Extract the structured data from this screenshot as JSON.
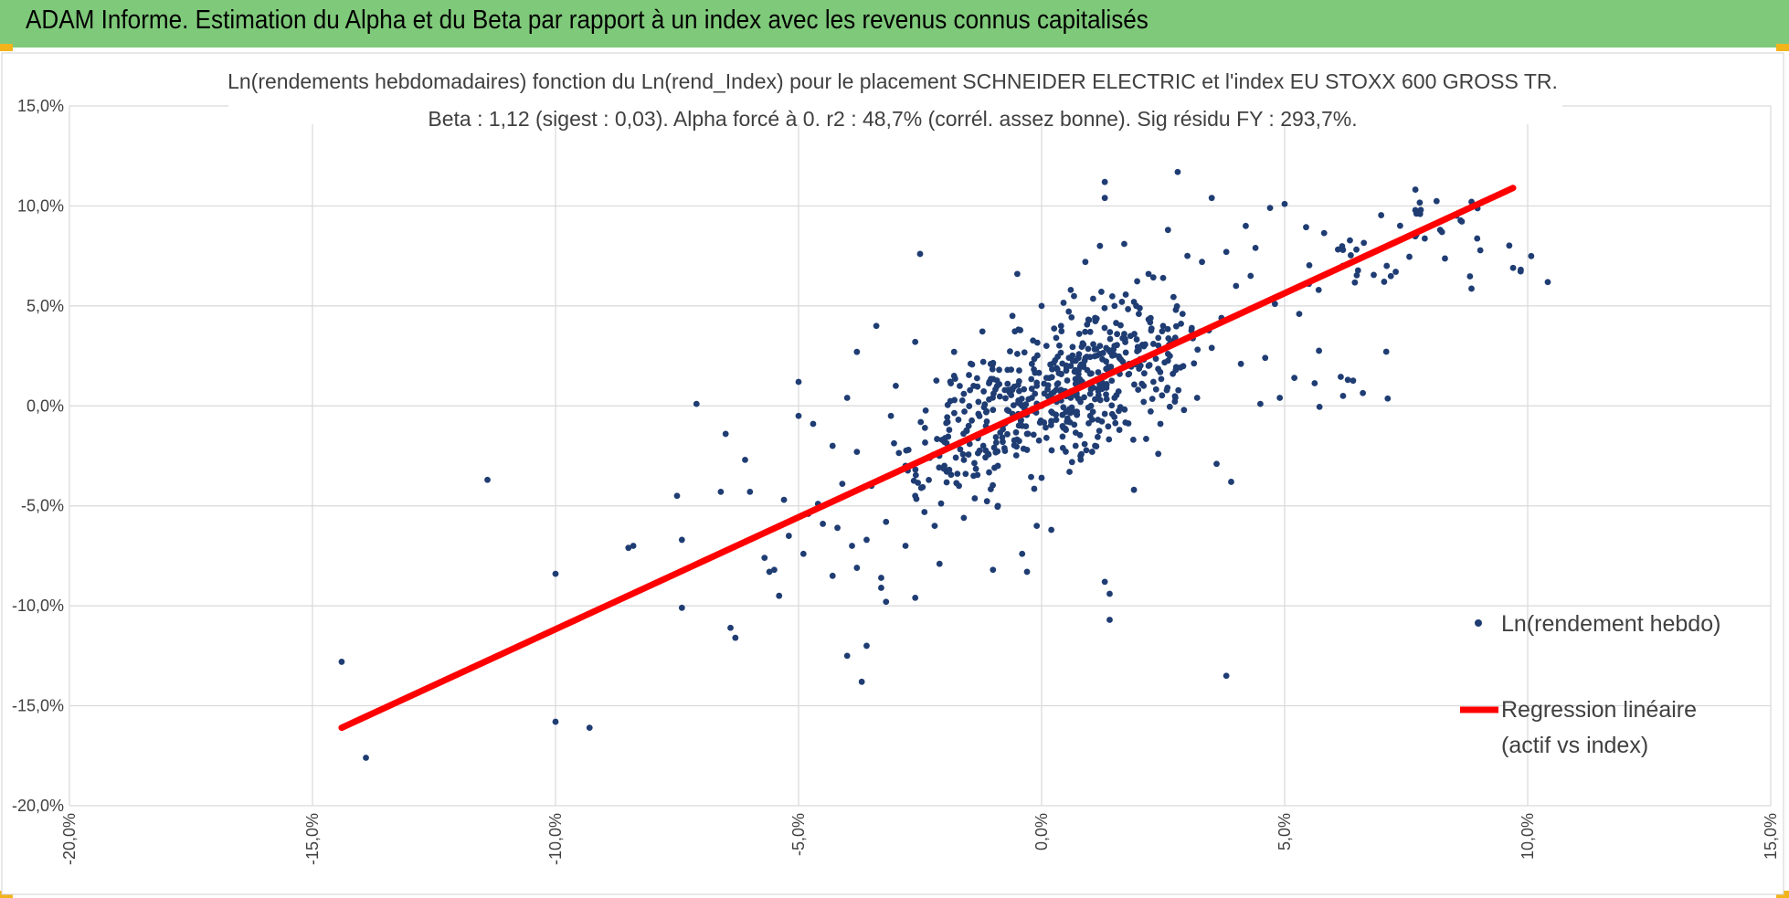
{
  "header": {
    "title": "ADAM Informe. Estimation du Alpha et du Beta par rapport à un index avec les revenus connus capitalisés"
  },
  "colors": {
    "header_bg": "#7fc97a",
    "corner_accent": "#f3b41b",
    "points": "#1f3d73",
    "regression": "#ff0000",
    "grid": "#d9d9d9"
  },
  "chart_data": {
    "type": "scatter",
    "title": "Ln(rendements hebdomadaires) fonction du Ln(rend_Index) pour le placement SCHNEIDER ELECTRIC et l'index EU STOXX 600 GROSS TR.",
    "subtitle": "Beta : 1,12 (sigest : 0,03). Alpha forcé à 0. r2 : 48,7% (corrél. assez bonne). Sig résidu FY : 293,7%.",
    "xlim": [
      -0.2,
      0.15
    ],
    "ylim": [
      -0.2,
      0.15
    ],
    "x_ticks": [
      {
        "value": -0.2,
        "label": "-20,0%"
      },
      {
        "value": -0.15,
        "label": "-15,0%"
      },
      {
        "value": -0.1,
        "label": "-10,0%"
      },
      {
        "value": -0.05,
        "label": "-5,0%"
      },
      {
        "value": 0.0,
        "label": "0,0%"
      },
      {
        "value": 0.05,
        "label": "5,0%"
      },
      {
        "value": 0.1,
        "label": "10,0%"
      },
      {
        "value": 0.15,
        "label": "15,0%"
      }
    ],
    "y_ticks": [
      {
        "value": 0.15,
        "label": "15,0%"
      },
      {
        "value": 0.1,
        "label": "10,0%"
      },
      {
        "value": 0.05,
        "label": "5,0%"
      },
      {
        "value": 0.0,
        "label": "0,0%"
      },
      {
        "value": -0.05,
        "label": "-5,0%"
      },
      {
        "value": -0.1,
        "label": "-10,0%"
      },
      {
        "value": -0.15,
        "label": "-15,0%"
      },
      {
        "value": -0.2,
        "label": "-20,0%"
      }
    ],
    "grid": true,
    "legend_position": "right",
    "series": [
      {
        "name": "Ln(rendement hebdo)",
        "kind": "scatter",
        "points": [
          [
            -0.144,
            -0.128
          ],
          [
            -0.139,
            -0.176
          ],
          [
            -0.114,
            -0.037
          ],
          [
            -0.1,
            -0.158
          ],
          [
            -0.1,
            -0.084
          ],
          [
            -0.093,
            -0.161
          ],
          [
            -0.085,
            -0.071
          ],
          [
            -0.084,
            -0.07
          ],
          [
            -0.075,
            -0.045
          ],
          [
            -0.074,
            -0.101
          ],
          [
            -0.074,
            -0.067
          ],
          [
            -0.071,
            0.001
          ],
          [
            -0.066,
            -0.043
          ],
          [
            -0.065,
            -0.014
          ],
          [
            -0.064,
            -0.111
          ],
          [
            -0.063,
            -0.116
          ],
          [
            -0.061,
            -0.027
          ],
          [
            -0.06,
            -0.043
          ],
          [
            -0.057,
            -0.076
          ],
          [
            -0.056,
            -0.083
          ],
          [
            -0.055,
            -0.082
          ],
          [
            -0.054,
            -0.095
          ],
          [
            -0.053,
            -0.047
          ],
          [
            -0.052,
            -0.065
          ],
          [
            -0.05,
            -0.005
          ],
          [
            -0.05,
            0.012
          ],
          [
            -0.049,
            -0.074
          ],
          [
            -0.048,
            -0.054
          ],
          [
            -0.047,
            -0.009
          ],
          [
            -0.046,
            -0.049
          ],
          [
            -0.045,
            -0.059
          ],
          [
            -0.043,
            -0.085
          ],
          [
            -0.043,
            -0.02
          ],
          [
            -0.042,
            -0.061
          ],
          [
            -0.041,
            -0.039
          ],
          [
            -0.04,
            -0.125
          ],
          [
            -0.04,
            0.004
          ],
          [
            -0.039,
            -0.07
          ],
          [
            -0.038,
            -0.081
          ],
          [
            -0.038,
            -0.023
          ],
          [
            -0.038,
            0.027
          ],
          [
            -0.037,
            -0.138
          ],
          [
            -0.036,
            -0.12
          ],
          [
            -0.036,
            -0.067
          ],
          [
            -0.035,
            -0.04
          ],
          [
            -0.034,
            0.04
          ],
          [
            -0.033,
            -0.086
          ],
          [
            -0.033,
            -0.091
          ],
          [
            -0.032,
            -0.098
          ],
          [
            -0.032,
            -0.058
          ],
          [
            -0.031,
            -0.005
          ],
          [
            -0.03,
            0.01
          ],
          [
            -0.028,
            -0.07
          ],
          [
            -0.028,
            -0.03
          ],
          [
            -0.026,
            -0.096
          ],
          [
            -0.026,
            -0.045
          ],
          [
            -0.026,
            0.032
          ],
          [
            -0.025,
            0.076
          ],
          [
            -0.024,
            -0.011
          ],
          [
            -0.022,
            -0.06
          ],
          [
            -0.021,
            -0.079
          ],
          [
            -0.02,
            -0.03
          ],
          [
            -0.019,
            -0.012
          ],
          [
            -0.018,
            0.015
          ],
          [
            -0.018,
            0.027
          ],
          [
            -0.016,
            -0.056
          ],
          [
            -0.014,
            -0.035
          ],
          [
            -0.013,
            -0.004
          ],
          [
            -0.012,
            0.022
          ],
          [
            -0.01,
            -0.082
          ],
          [
            -0.009,
            -0.05
          ],
          [
            -0.008,
            -0.018
          ],
          [
            -0.007,
            0.011
          ],
          [
            -0.006,
            0.008
          ],
          [
            -0.006,
            0.045
          ],
          [
            -0.005,
            0.066
          ],
          [
            -0.004,
            -0.074
          ],
          [
            -0.003,
            -0.083
          ],
          [
            -0.003,
            -0.014
          ],
          [
            -0.002,
            0.021
          ],
          [
            -0.001,
            -0.06
          ],
          [
            0.0,
            -0.036
          ],
          [
            0.0,
            0.05
          ],
          [
            0.001,
            -0.016
          ],
          [
            0.001,
            0.03
          ],
          [
            0.002,
            -0.062
          ],
          [
            0.003,
            -0.007
          ],
          [
            0.004,
            0.04
          ],
          [
            0.005,
            -0.003
          ],
          [
            0.006,
            0.058
          ],
          [
            0.007,
            0.011
          ],
          [
            0.008,
            -0.025
          ],
          [
            0.009,
            0.072
          ],
          [
            0.01,
            0.037
          ],
          [
            0.011,
            -0.02
          ],
          [
            0.012,
            0.03
          ],
          [
            0.012,
            0.08
          ],
          [
            0.013,
            0.104
          ],
          [
            0.013,
            0.112
          ],
          [
            0.014,
            -0.107
          ],
          [
            0.014,
            -0.094
          ],
          [
            0.013,
            -0.088
          ],
          [
            0.015,
            0.05
          ],
          [
            0.016,
            -0.012
          ],
          [
            0.017,
            0.081
          ],
          [
            0.018,
            0.021
          ],
          [
            0.019,
            -0.042
          ],
          [
            0.02,
            0.046
          ],
          [
            0.021,
            0.01
          ],
          [
            0.022,
            0.066
          ],
          [
            0.023,
            0.031
          ],
          [
            0.024,
            -0.024
          ],
          [
            0.025,
            0.064
          ],
          [
            0.026,
            0.088
          ],
          [
            0.027,
            0.016
          ],
          [
            0.028,
            0.117
          ],
          [
            0.029,
            0.046
          ],
          [
            0.03,
            0.075
          ],
          [
            0.031,
            0.035
          ],
          [
            0.032,
            0.004
          ],
          [
            0.033,
            0.072
          ],
          [
            0.035,
            0.104
          ],
          [
            0.035,
            0.029
          ],
          [
            0.036,
            -0.029
          ],
          [
            0.037,
            0.044
          ],
          [
            0.038,
            -0.135
          ],
          [
            0.038,
            0.077
          ],
          [
            0.039,
            -0.038
          ],
          [
            0.04,
            0.06
          ],
          [
            0.041,
            0.021
          ],
          [
            0.042,
            0.09
          ],
          [
            0.043,
            0.065
          ],
          [
            0.044,
            0.079
          ],
          [
            0.045,
            0.001
          ],
          [
            0.046,
            0.024
          ],
          [
            0.047,
            0.099
          ],
          [
            0.048,
            0.051
          ],
          [
            0.049,
            0.004
          ],
          [
            0.05,
            0.101
          ],
          [
            0.052,
            0.014
          ],
          [
            0.053,
            0.046
          ],
          [
            0.055,
            0.061
          ],
          [
            0.057,
            0.058
          ],
          [
            0.062,
            0.078
          ],
          [
            0.063,
            0.013
          ],
          [
            0.071,
            0.07
          ],
          [
            0.078,
            0.098
          ],
          [
            0.082,
            0.088
          ],
          [
            0.097,
            0.069
          ],
          [
            -0.02,
            -0.018
          ],
          [
            -0.015,
            -0.01
          ],
          [
            -0.012,
            -0.02
          ],
          [
            -0.01,
            -0.002
          ],
          [
            -0.008,
            -0.01
          ],
          [
            -0.006,
            -0.004
          ],
          [
            -0.004,
            0.0
          ],
          [
            -0.002,
            0.004
          ],
          [
            0.0,
            0.0
          ],
          [
            0.002,
            0.006
          ],
          [
            0.004,
            0.008
          ],
          [
            0.006,
            0.004
          ],
          [
            0.008,
            0.012
          ],
          [
            0.01,
            0.016
          ],
          [
            0.012,
            0.01
          ],
          [
            0.014,
            0.018
          ],
          [
            0.016,
            0.024
          ],
          [
            0.018,
            0.016
          ],
          [
            0.02,
            0.028
          ],
          [
            0.022,
            0.02
          ],
          [
            0.024,
            0.034
          ],
          [
            0.026,
            0.026
          ],
          [
            -0.016,
            0.006
          ],
          [
            -0.011,
            -0.024
          ],
          [
            -0.007,
            0.018
          ],
          [
            -0.003,
            -0.022
          ],
          [
            0.001,
            0.014
          ],
          [
            0.005,
            -0.012
          ],
          [
            0.009,
            0.024
          ],
          [
            0.013,
            -0.004
          ],
          [
            0.017,
            0.036
          ],
          [
            0.021,
            0.002
          ],
          [
            0.025,
            0.04
          ],
          [
            -0.019,
            -0.032
          ],
          [
            -0.014,
            0.01
          ],
          [
            -0.009,
            -0.03
          ],
          [
            -0.005,
            0.026
          ],
          [
            0.003,
            0.034
          ],
          [
            0.007,
            -0.02
          ],
          [
            0.011,
            0.044
          ],
          [
            0.015,
            0.004
          ],
          [
            0.019,
            0.052
          ],
          [
            0.023,
            0.012
          ],
          [
            -0.023,
            -0.026
          ],
          [
            -0.017,
            -0.04
          ],
          [
            -0.013,
            0.002
          ],
          [
            0.006,
            0.02
          ],
          [
            0.01,
            0.006
          ],
          [
            0.015,
            0.03
          ],
          [
            0.004,
            0.016
          ],
          [
            0.002,
            -0.008
          ],
          [
            -0.001,
            0.01
          ],
          [
            0.008,
            0.002
          ],
          [
            0.012,
            0.026
          ]
        ]
      },
      {
        "name": "Regression linéaire\n(actif vs index)",
        "legend_lines": [
          "Regression linéaire",
          "(actif vs index)"
        ],
        "kind": "line",
        "x": [
          -0.144,
          0.097
        ],
        "y": [
          -0.161,
          0.109
        ]
      }
    ]
  }
}
